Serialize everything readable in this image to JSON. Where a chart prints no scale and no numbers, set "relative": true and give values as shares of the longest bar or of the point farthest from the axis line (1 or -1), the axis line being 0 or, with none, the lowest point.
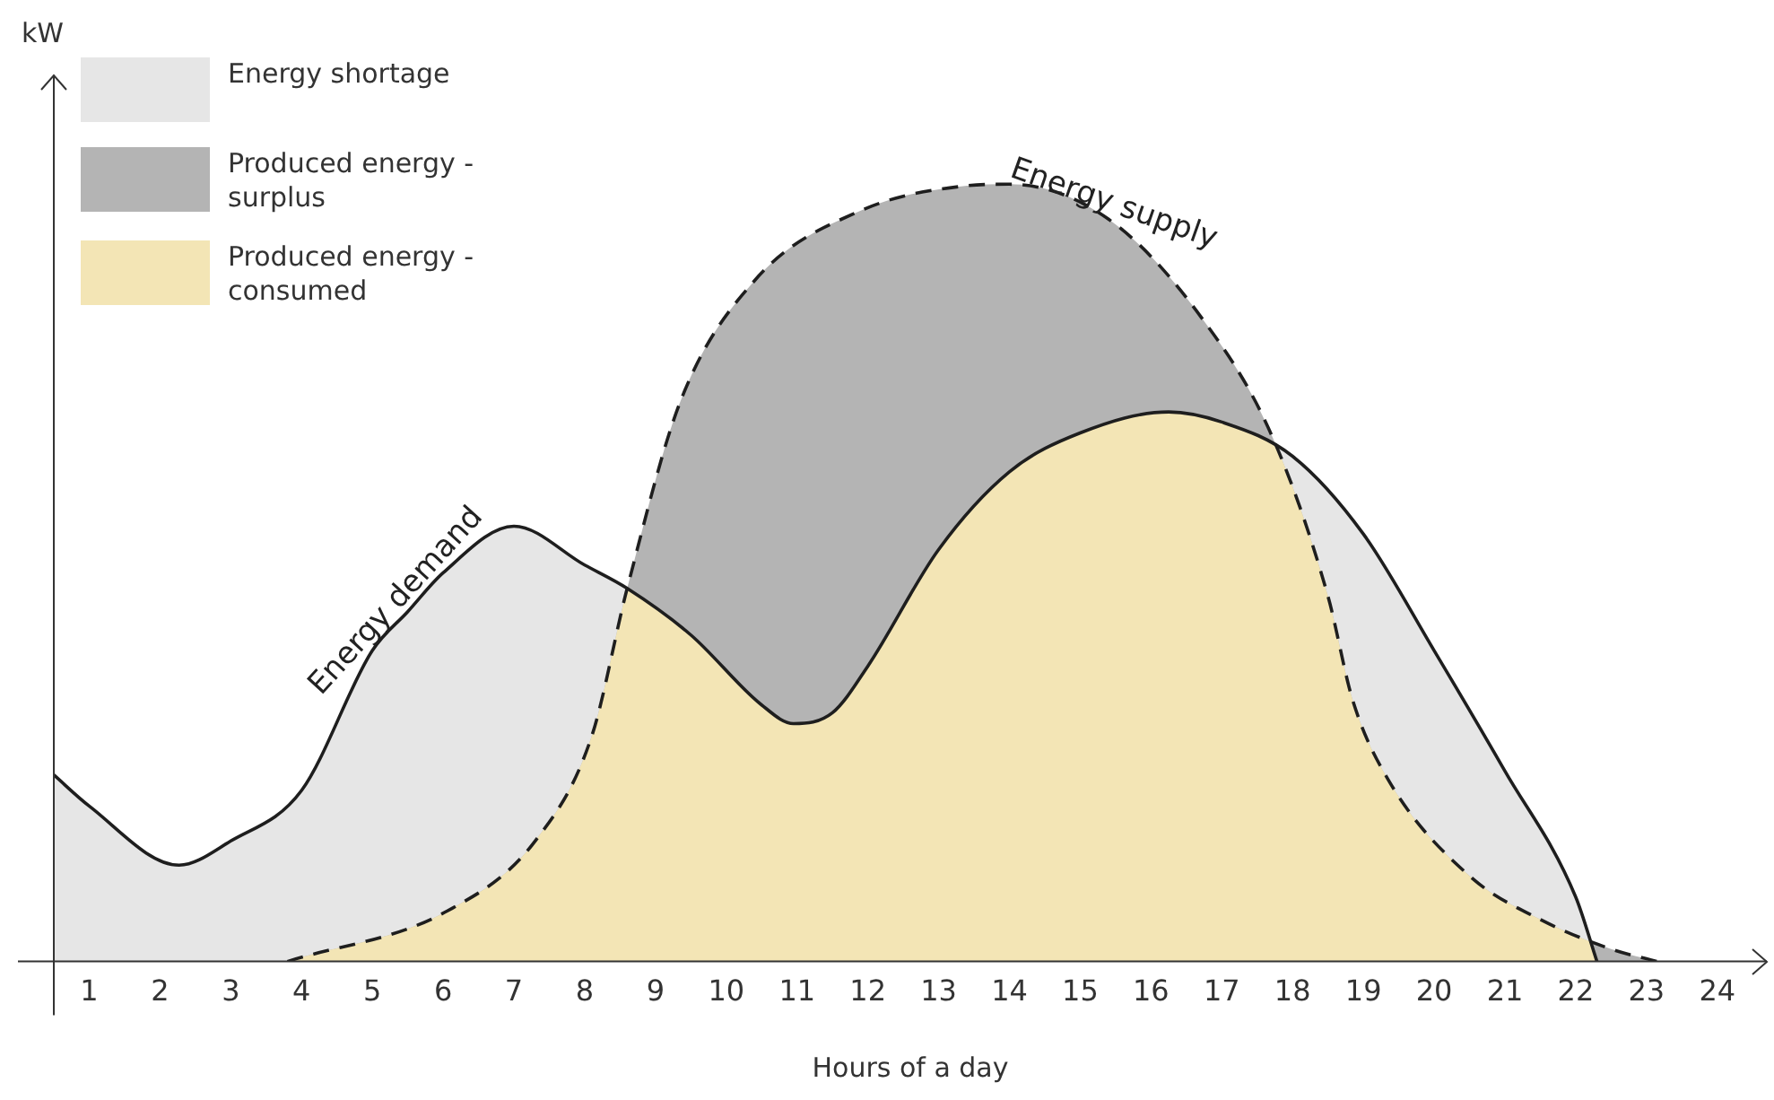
{
  "chart_data": {
    "type": "area",
    "relative": true,
    "xlabel": "Hours of a day",
    "xlim": [
      0.5,
      24.7
    ],
    "xticks": [
      1,
      2,
      3,
      4,
      5,
      6,
      7,
      8,
      9,
      10,
      11,
      12,
      13,
      14,
      15,
      16,
      17,
      18,
      19,
      20,
      21,
      22,
      23,
      24
    ],
    "legend": "top left",
    "marker": "none",
    "grid": false,
    "series": [
      {
        "name": "Energy shortage",
        "color": "#e6e6e6",
        "line_style": "solid",
        "x": [
          0.5,
          1,
          2.27,
          3,
          4,
          5,
          5.5,
          6,
          7,
          8,
          8.6,
          9.5,
          10.5,
          10.95,
          11.5,
          12,
          13,
          14,
          15,
          16.25,
          17,
          18,
          19,
          20,
          21,
          22,
          22.3
        ],
        "values": [
          0.24,
          0.2,
          0.124,
          0.155,
          0.22,
          0.4,
          0.45,
          0.5,
          0.56,
          0.51,
          0.48,
          0.42,
          0.33,
          0.306,
          0.32,
          0.38,
          0.53,
          0.63,
          0.68,
          0.707,
          0.694,
          0.65,
          0.55,
          0.4,
          0.245,
          0.083,
          0
        ]
      },
      {
        "name": "Produced energy - surplus",
        "color": "#b4b4b4",
        "line_style": "dashed",
        "x": [
          3.8,
          6.06,
          7.3,
          8.1,
          8.6,
          9.35,
          10.4,
          11.9,
          13.4,
          14.0,
          15.4,
          16.7,
          17.7,
          18.5,
          18.85,
          19.35,
          20.5,
          21.5,
          22.5,
          23.15
        ],
        "values": [
          0,
          0.065,
          0.155,
          0.29,
          0.48,
          0.72,
          0.876,
          0.966,
          0.998,
          1,
          0.955,
          0.83,
          0.678,
          0.47,
          0.336,
          0.234,
          0.11,
          0.054,
          0.016,
          0
        ]
      },
      {
        "name": "Produced energy - consumed",
        "color": "#f3e5b5"
      }
    ],
    "annotations": [
      "kW",
      {
        "text": "Energy demand",
        "x": 5.5,
        "y": 0.45
      },
      {
        "text": "Energy supply",
        "x": 15.4,
        "y": 0.955
      }
    ]
  }
}
